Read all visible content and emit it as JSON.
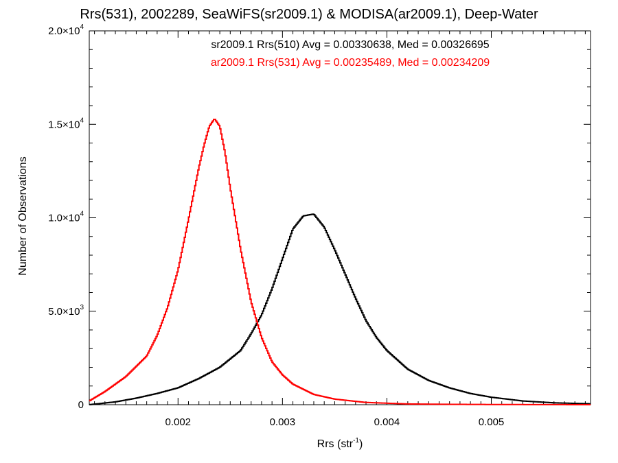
{
  "chart_data": {
    "type": "line",
    "title": "Rrs(531), 2002289, SeaWiFS(sr2009.1) & MODISA(ar2009.1), Deep-Water",
    "xlabel": {
      "base": "Rrs (str",
      "sup": "-1",
      "close": ")"
    },
    "ylabel": "Number of Observations",
    "xlim": [
      0.00115,
      0.00595
    ],
    "ylim": [
      0,
      20000
    ],
    "x_ticks": [
      {
        "value": 0.002,
        "label": "0.002"
      },
      {
        "value": 0.003,
        "label": "0.003"
      },
      {
        "value": 0.004,
        "label": "0.004"
      },
      {
        "value": 0.005,
        "label": "0.005"
      }
    ],
    "y_ticks": [
      {
        "value": 0,
        "label": "0",
        "exp": ""
      },
      {
        "value": 5000,
        "label": "5.0×10",
        "exp": "3"
      },
      {
        "value": 10000,
        "label": "1.0×10",
        "exp": "4"
      },
      {
        "value": 15000,
        "label": "1.5×10",
        "exp": "4"
      },
      {
        "value": 20000,
        "label": "2.0×10",
        "exp": "4"
      }
    ],
    "annotations": [
      {
        "text": "sr2009.1 Rrs(510) Avg = 0.00330638, Med = 0.00326695",
        "color": "#000000"
      },
      {
        "text": "ar2009.1 Rrs(531) Avg = 0.00235489, Med = 0.00234209",
        "color": "#ff0000"
      }
    ],
    "series": [
      {
        "color": "#000000",
        "x": [
          0.00115,
          0.0014,
          0.0016,
          0.0018,
          0.002,
          0.0022,
          0.0024,
          0.0026,
          0.0027,
          0.0028,
          0.0029,
          0.003,
          0.0031,
          0.0032,
          0.0033,
          0.0034,
          0.0035,
          0.0036,
          0.0037,
          0.0038,
          0.0039,
          0.004,
          0.0042,
          0.0044,
          0.0046,
          0.0048,
          0.005,
          0.0053,
          0.0056,
          0.00595
        ],
        "y": [
          0,
          150,
          350,
          600,
          900,
          1400,
          2000,
          2900,
          3800,
          4800,
          6200,
          7800,
          9400,
          10100,
          10200,
          9500,
          8300,
          7000,
          5700,
          4500,
          3600,
          2900,
          1900,
          1300,
          900,
          600,
          400,
          200,
          100,
          50
        ]
      },
      {
        "color": "#ff0000",
        "x": [
          0.00115,
          0.0013,
          0.0015,
          0.0017,
          0.0018,
          0.0019,
          0.002,
          0.0021,
          0.0022,
          0.00225,
          0.0023,
          0.00235,
          0.0024,
          0.00245,
          0.0025,
          0.0026,
          0.0027,
          0.0028,
          0.0029,
          0.003,
          0.0031,
          0.0033,
          0.0035,
          0.0038,
          0.0042,
          0.0046,
          0.005,
          0.00595
        ],
        "y": [
          200,
          700,
          1500,
          2600,
          3700,
          5200,
          7200,
          9900,
          12700,
          13900,
          14900,
          15300,
          14900,
          13500,
          11600,
          8300,
          5500,
          3600,
          2300,
          1600,
          1100,
          550,
          300,
          120,
          40,
          20,
          10,
          0
        ]
      }
    ]
  }
}
